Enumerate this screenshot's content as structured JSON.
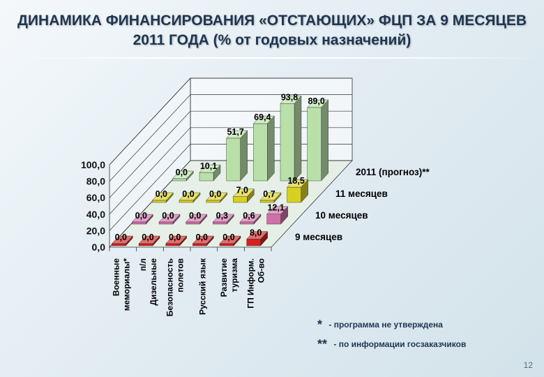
{
  "title": "ДИНАМИКА ФИНАНСИРОВАНИЯ «ОТСТАЮЩИХ» ФЦП ЗА 9 МЕСЯЦЕВ 2011 ГОДА (% от годовых назначений)",
  "notes": [
    {
      "mark": "*",
      "text": "- программа не утверждена"
    },
    {
      "mark": "**",
      "text": "- по информации госзаказчиков"
    }
  ],
  "page_number": "12",
  "chart_data": {
    "type": "bar",
    "style": "3d-grouped-depth",
    "ylim": [
      0,
      100
    ],
    "yticks": [
      "0,0",
      "20,0",
      "40,0",
      "60,0",
      "80,0",
      "100,0"
    ],
    "grid": true,
    "categories": [
      [
        "Военные",
        "мемориалы*"
      ],
      [
        "п/л",
        "Дизельные"
      ],
      [
        "Безопасность",
        "полетов"
      ],
      [
        "Русский язык"
      ],
      [
        "Развитие",
        "туризма"
      ],
      [
        "ГП Информ.",
        "Об-во"
      ]
    ],
    "series": [
      {
        "name": "9 месяцев",
        "color": "#d42020",
        "values": [
          0.0,
          0.0,
          0.0,
          0.0,
          0.0,
          8.0
        ],
        "labels": [
          "0,0",
          "0,0",
          "0,0",
          "0,0",
          "0,0",
          "8,0"
        ]
      },
      {
        "name": "10 месяцев",
        "color": "#d070a8",
        "values": [
          0.0,
          0.0,
          0.0,
          0.3,
          0.6,
          12.1
        ],
        "labels": [
          "0,0",
          "0,0",
          "0,0",
          "0,3",
          "0,6",
          "12,1"
        ]
      },
      {
        "name": "11 месяцев",
        "color": "#d8d020",
        "values": [
          0.0,
          0.0,
          0.0,
          7.0,
          0.7,
          18.5
        ],
        "labels": [
          "0,0",
          "0,0",
          "0,0",
          "7,0",
          "0,7",
          "18,5"
        ]
      },
      {
        "name": "2011 (прогноз)**",
        "color": "#b8e0a8",
        "values": [
          0.0,
          10.1,
          51.7,
          69.4,
          93.8,
          89.0
        ],
        "labels": [
          "0,0",
          "10,1",
          "51,7",
          "69,4",
          "93,8",
          "89,0"
        ]
      }
    ]
  }
}
